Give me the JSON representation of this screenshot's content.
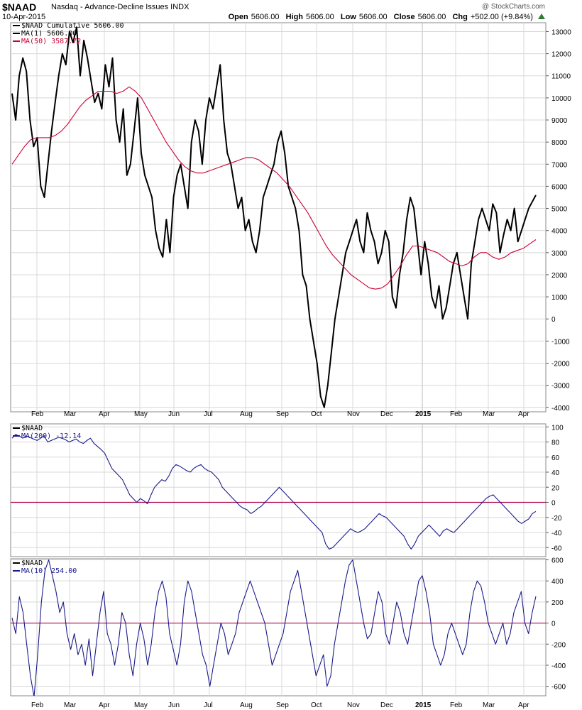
{
  "header": {
    "symbol": "$NAAD",
    "description": "Nasdaq - Advance-Decline Issues  INDX",
    "date": "10-Apr-2015",
    "credit": "@ StockCharts.com",
    "open_label": "Open",
    "open": "5606.00",
    "high_label": "High",
    "high": "5606.00",
    "low_label": "Low",
    "low": "5606.00",
    "close_label": "Close",
    "close": "5606.00",
    "chg_label": "Chg",
    "chg": "+502.00 (+9.84%)"
  },
  "colors": {
    "price": "#000000",
    "ma50": "#cc0033",
    "osc": "#1a1a8c",
    "zero": "#b0004a",
    "grid": "#d8d8d8"
  },
  "chart_data": [
    {
      "type": "line",
      "panel": "main",
      "legend": [
        {
          "name": "$NAAD Cumulative 5606.00",
          "color": "#000000"
        },
        {
          "name": "MA(1) 5606.00",
          "color": "#000000"
        },
        {
          "name": "MA(50) 3587.72",
          "color": "#cc0033"
        }
      ],
      "ylim": [
        -4200,
        13400
      ],
      "yticks": [
        13000,
        12000,
        11000,
        10000,
        9000,
        8000,
        7000,
        6000,
        5000,
        4000,
        3000,
        2000,
        1000,
        0,
        -1000,
        -2000,
        -3000,
        -4000
      ],
      "xticks": [
        "Feb",
        "Mar",
        "Apr",
        "May",
        "Jun",
        "Jul",
        "Aug",
        "Sep",
        "Oct",
        "Nov",
        "Dec",
        "2015",
        "Feb",
        "Mar",
        "Apr"
      ],
      "series": [
        {
          "name": "$NAAD Cumulative",
          "values": [
            10200,
            9000,
            11000,
            11800,
            11200,
            9000,
            7800,
            8200,
            6000,
            5500,
            7000,
            8500,
            9800,
            11000,
            12000,
            11500,
            13000,
            12500,
            13200,
            11000,
            12600,
            11800,
            10800,
            9800,
            10200,
            9500,
            11500,
            10500,
            11800,
            9000,
            8000,
            9500,
            6500,
            7000,
            8500,
            10000,
            7500,
            6500,
            6000,
            5500,
            4000,
            3200,
            2800,
            4500,
            3000,
            5500,
            6500,
            7000,
            6000,
            5000,
            8000,
            9000,
            8500,
            7000,
            9000,
            10000,
            9500,
            10500,
            11500,
            9000,
            7500,
            7000,
            6000,
            5000,
            5500,
            4000,
            4500,
            3500,
            3000,
            4000,
            5500,
            6000,
            6500,
            7000,
            8000,
            8500,
            7500,
            6000,
            5500,
            5000,
            4000,
            2000,
            1500,
            0,
            -1000,
            -2000,
            -3500,
            -4000,
            -3000,
            -1500,
            0,
            1000,
            2000,
            3000,
            3500,
            4000,
            4500,
            3500,
            3000,
            4800,
            4000,
            3500,
            2500,
            3000,
            4000,
            3500,
            1000,
            500,
            2000,
            3000,
            4500,
            5500,
            5000,
            3500,
            2000,
            3500,
            2500,
            1000,
            500,
            1500,
            0,
            500,
            1500,
            2500,
            3000,
            2000,
            1000,
            0,
            2500,
            3500,
            4500,
            5000,
            4500,
            4000,
            5200,
            4800,
            3000,
            3800,
            4500,
            4000,
            5000,
            3500,
            4000,
            4500,
            5000,
            5300,
            5600
          ]
        },
        {
          "name": "MA(50)",
          "values": [
            7000,
            7400,
            7800,
            8100,
            8200,
            8200,
            8200,
            8300,
            8500,
            8800,
            9200,
            9600,
            9900,
            10100,
            10300,
            10300,
            10300,
            10200,
            10300,
            10500,
            10300,
            10000,
            9500,
            9000,
            8500,
            8000,
            7600,
            7200,
            6900,
            6700,
            6600,
            6600,
            6700,
            6800,
            6900,
            7000,
            7100,
            7200,
            7300,
            7300,
            7200,
            7000,
            6800,
            6600,
            6300,
            6000,
            5600,
            5200,
            4800,
            4300,
            3800,
            3300,
            2900,
            2600,
            2300,
            2000,
            1800,
            1600,
            1400,
            1350,
            1400,
            1600,
            2000,
            2400,
            2900,
            3300,
            3300,
            3200,
            3100,
            3000,
            2800,
            2600,
            2500,
            2400,
            2500,
            2800,
            3000,
            3000,
            2800,
            2700,
            2800,
            3000,
            3100,
            3200,
            3400,
            3588
          ]
        }
      ]
    },
    {
      "type": "line",
      "panel": "osc1",
      "legend": [
        {
          "name": "$NAAD",
          "color": "#000000"
        },
        {
          "name": "MA(200) -12.14",
          "color": "#1a1a8c"
        }
      ],
      "ylim": [
        -72,
        104
      ],
      "yticks": [
        100,
        80,
        60,
        40,
        20,
        0,
        -20,
        -40,
        -60
      ],
      "series": [
        {
          "name": "MA(200)",
          "values": [
            85,
            90,
            88,
            85,
            88,
            86,
            84,
            82,
            85,
            88,
            80,
            82,
            84,
            86,
            85,
            83,
            80,
            82,
            84,
            80,
            78,
            82,
            85,
            78,
            74,
            70,
            65,
            55,
            45,
            40,
            35,
            30,
            20,
            10,
            5,
            0,
            5,
            2,
            -2,
            10,
            20,
            25,
            30,
            28,
            35,
            45,
            50,
            48,
            45,
            42,
            40,
            45,
            48,
            50,
            45,
            42,
            40,
            35,
            30,
            20,
            15,
            10,
            5,
            0,
            -5,
            -8,
            -10,
            -15,
            -12,
            -8,
            -5,
            0,
            5,
            10,
            15,
            20,
            15,
            10,
            5,
            0,
            -5,
            -10,
            -15,
            -20,
            -25,
            -30,
            -35,
            -40,
            -55,
            -62,
            -60,
            -55,
            -50,
            -45,
            -40,
            -35,
            -38,
            -40,
            -38,
            -35,
            -30,
            -25,
            -20,
            -15,
            -18,
            -20,
            -25,
            -30,
            -35,
            -40,
            -45,
            -55,
            -62,
            -55,
            -45,
            -40,
            -35,
            -30,
            -35,
            -40,
            -45,
            -38,
            -35,
            -38,
            -40,
            -35,
            -30,
            -25,
            -20,
            -15,
            -10,
            -5,
            0,
            5,
            8,
            10,
            5,
            0,
            -5,
            -10,
            -15,
            -20,
            -25,
            -28,
            -25,
            -22,
            -15,
            -12
          ]
        }
      ]
    },
    {
      "type": "line",
      "panel": "osc2",
      "legend": [
        {
          "name": "$NAAD",
          "color": "#000000"
        },
        {
          "name": "MA(10) 254.00",
          "color": "#1a1a8c"
        }
      ],
      "ylim": [
        -690,
        610
      ],
      "yticks": [
        600,
        400,
        200,
        0,
        -200,
        -400,
        -600
      ],
      "series": [
        {
          "name": "MA(10)",
          "values": [
            50,
            -100,
            250,
            100,
            -200,
            -500,
            -700,
            -300,
            200,
            500,
            600,
            450,
            300,
            100,
            200,
            -100,
            -250,
            -100,
            -300,
            -200,
            -400,
            -150,
            -500,
            -200,
            100,
            300,
            -100,
            -200,
            -400,
            -200,
            100,
            0,
            -300,
            -500,
            -200,
            0,
            -150,
            -400,
            -200,
            100,
            300,
            400,
            250,
            -100,
            -250,
            -400,
            -200,
            200,
            400,
            300,
            100,
            -100,
            -300,
            -400,
            -600,
            -400,
            -200,
            0,
            -100,
            -300,
            -200,
            -100,
            100,
            200,
            300,
            400,
            300,
            200,
            100,
            0,
            -200,
            -400,
            -300,
            -200,
            -100,
            100,
            300,
            400,
            500,
            300,
            100,
            -100,
            -300,
            -500,
            -400,
            -300,
            -600,
            -500,
            -200,
            0,
            200,
            400,
            550,
            600,
            400,
            200,
            0,
            -150,
            -100,
            100,
            300,
            200,
            -100,
            -200,
            0,
            200,
            100,
            -100,
            -200,
            0,
            200,
            400,
            450,
            300,
            100,
            -200,
            -300,
            -400,
            -300,
            -100,
            0,
            -100,
            -200,
            -300,
            -200,
            100,
            300,
            400,
            350,
            200,
            0,
            -100,
            -200,
            -100,
            0,
            -200,
            -100,
            100,
            200,
            300,
            0,
            -100,
            100,
            254
          ]
        }
      ]
    }
  ]
}
